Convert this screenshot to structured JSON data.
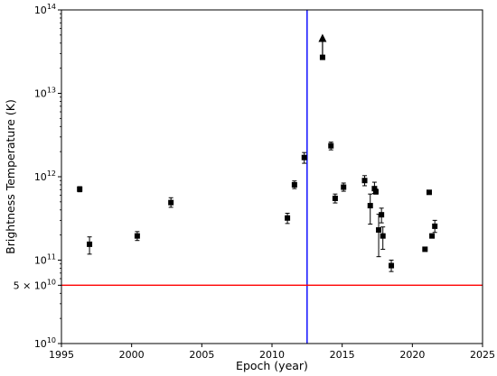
{
  "chart_data": {
    "type": "scatter",
    "title": "",
    "xlabel": "Epoch (year)",
    "ylabel": "Brightness Temperature (K)",
    "xlim": [
      1995,
      2025
    ],
    "ylim": [
      10000000000.0,
      100000000000000.0
    ],
    "yscale": "log",
    "grid": false,
    "x_ticks": [
      {
        "value": 1995,
        "label": "1995"
      },
      {
        "value": 2000,
        "label": "2000"
      },
      {
        "value": 2005,
        "label": "2005"
      },
      {
        "value": 2010,
        "label": "2010"
      },
      {
        "value": 2015,
        "label": "2015"
      },
      {
        "value": 2020,
        "label": "2020"
      },
      {
        "value": 2025,
        "label": "2025"
      }
    ],
    "y_ticks": [
      {
        "value": 10000000000.0,
        "base": "10",
        "exp": "10"
      },
      {
        "value": 100000000000.0,
        "base": "10",
        "exp": "11"
      },
      {
        "value": 1000000000000.0,
        "base": "10",
        "exp": "12"
      },
      {
        "value": 10000000000000.0,
        "base": "10",
        "exp": "13"
      },
      {
        "value": 100000000000000.0,
        "base": "10",
        "exp": "14"
      }
    ],
    "y_extra_tick": {
      "value": 50000000000.0,
      "prefix": "5 × 10",
      "exp": "10"
    },
    "reference_lines": [
      {
        "orientation": "vertical",
        "value": 2012.5,
        "color": "#0000ff"
      },
      {
        "orientation": "horizontal",
        "value": 50000000000.0,
        "color": "#ff0000"
      }
    ],
    "points": [
      {
        "x": 1996.3,
        "y": 710000000000.0,
        "ylo": 660000000000.0,
        "yhi": 760000000000.0
      },
      {
        "x": 1997.0,
        "y": 155000000000.0,
        "ylo": 118000000000.0,
        "yhi": 190000000000.0
      },
      {
        "x": 2000.4,
        "y": 195000000000.0,
        "ylo": 172000000000.0,
        "yhi": 220000000000.0
      },
      {
        "x": 2002.8,
        "y": 490000000000.0,
        "ylo": 430000000000.0,
        "yhi": 560000000000.0
      },
      {
        "x": 2011.1,
        "y": 320000000000.0,
        "ylo": 275000000000.0,
        "yhi": 365000000000.0
      },
      {
        "x": 2011.6,
        "y": 800000000000.0,
        "ylo": 720000000000.0,
        "yhi": 890000000000.0
      },
      {
        "x": 2012.3,
        "y": 1700000000000.0,
        "ylo": 1450000000000.0,
        "yhi": 1950000000000.0
      },
      {
        "x": 2013.6,
        "y": 27000000000000.0,
        "lower_limit": true,
        "arrow_to": 48000000000000.0
      },
      {
        "x": 2014.2,
        "y": 2350000000000.0,
        "ylo": 2100000000000.0,
        "yhi": 2600000000000.0
      },
      {
        "x": 2014.5,
        "y": 550000000000.0,
        "ylo": 485000000000.0,
        "yhi": 620000000000.0
      },
      {
        "x": 2015.1,
        "y": 750000000000.0,
        "ylo": 670000000000.0,
        "yhi": 840000000000.0
      },
      {
        "x": 2016.6,
        "y": 900000000000.0,
        "ylo": 780000000000.0,
        "yhi": 1030000000000.0
      },
      {
        "x": 2017.0,
        "y": 450000000000.0,
        "ylo": 270000000000.0,
        "yhi": 620000000000.0
      },
      {
        "x": 2017.3,
        "y": 720000000000.0,
        "ylo": 630000000000.0,
        "yhi": 860000000000.0
      },
      {
        "x": 2017.4,
        "y": 660000000000.0,
        "ylo": 620000000000.0,
        "yhi": 710000000000.0
      },
      {
        "x": 2017.6,
        "y": 230000000000.0,
        "ylo": 110000000000.0,
        "yhi": 355000000000.0
      },
      {
        "x": 2017.8,
        "y": 350000000000.0,
        "ylo": 280000000000.0,
        "yhi": 420000000000.0
      },
      {
        "x": 2017.9,
        "y": 195000000000.0,
        "ylo": 135000000000.0,
        "yhi": 250000000000.0
      },
      {
        "x": 2018.5,
        "y": 86000000000.0,
        "ylo": 73000000000.0,
        "yhi": 100000000000.0
      },
      {
        "x": 2020.9,
        "y": 135000000000.0,
        "ylo": 128000000000.0,
        "yhi": 142000000000.0
      },
      {
        "x": 2021.2,
        "y": 650000000000.0,
        "ylo": 630000000000.0,
        "yhi": 670000000000.0
      },
      {
        "x": 2021.4,
        "y": 195000000000.0,
        "ylo": 185000000000.0,
        "yhi": 205000000000.0
      },
      {
        "x": 2021.6,
        "y": 255000000000.0,
        "ylo": 215000000000.0,
        "yhi": 300000000000.0
      }
    ]
  }
}
